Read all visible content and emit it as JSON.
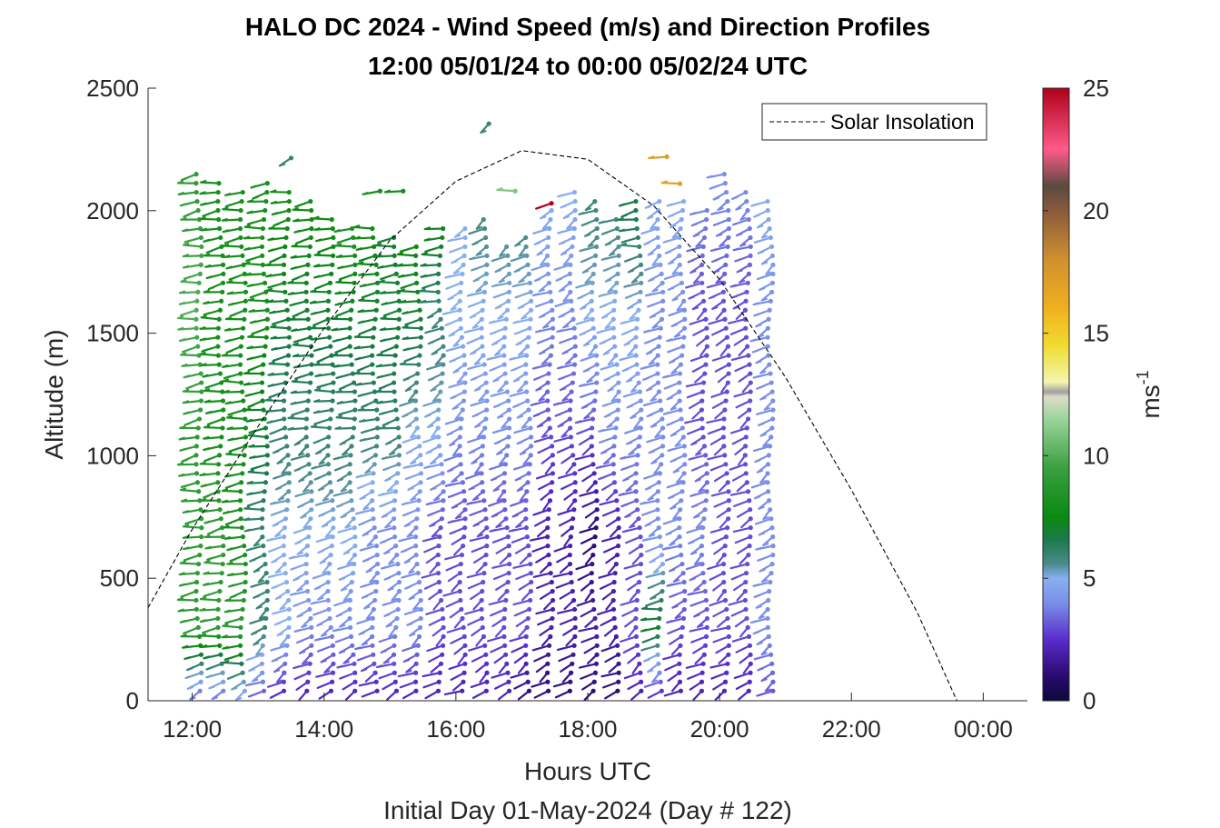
{
  "chart_data": {
    "type": "wind-barb-profile",
    "title": "HALO DC 2024 - Wind Speed (m/s) and Direction Profiles",
    "subtitle": "12:00 05/01/24 to 00:00 05/02/24  UTC",
    "xlabel": "Hours UTC",
    "ylabel": "Altitude (m)",
    "footer": "Initial Day 01-May-2024 (Day # 122)",
    "x_ticks": [
      "12:00",
      "14:00",
      "16:00",
      "18:00",
      "20:00",
      "22:00",
      "00:00"
    ],
    "y_ticks": [
      "0",
      "500",
      "1000",
      "1500",
      "2000",
      "2500"
    ],
    "xlim_hours": [
      11.33,
      24.67
    ],
    "ylim": [
      0,
      2500
    ],
    "legend": {
      "label": "Solar Insolation",
      "position": "top-right"
    },
    "colorbar": {
      "ticks": [
        "0",
        "5",
        "10",
        "15",
        "20",
        "25"
      ],
      "label_base": "ms",
      "label_exp": "-1",
      "range": [
        0,
        25
      ],
      "colors": [
        {
          "v": 0,
          "c": "#0a0a3a"
        },
        {
          "v": 1,
          "c": "#2a0a6e"
        },
        {
          "v": 2.5,
          "c": "#5a2ccc"
        },
        {
          "v": 4,
          "c": "#7a8fe8"
        },
        {
          "v": 5,
          "c": "#88b0f0"
        },
        {
          "v": 5.6,
          "c": "#4a8a8a"
        },
        {
          "v": 6.6,
          "c": "#1a7a4a"
        },
        {
          "v": 7.5,
          "c": "#0a8a10"
        },
        {
          "v": 9.5,
          "c": "#3aa040"
        },
        {
          "v": 11.5,
          "c": "#9cd49c"
        },
        {
          "v": 12.4,
          "c": "#dcdcc8"
        },
        {
          "v": 12.6,
          "c": "#a0a0a0"
        },
        {
          "v": 13,
          "c": "#f4f4b0"
        },
        {
          "v": 14.5,
          "c": "#f0dc30"
        },
        {
          "v": 16,
          "c": "#f0b020"
        },
        {
          "v": 18,
          "c": "#d09030"
        },
        {
          "v": 20,
          "c": "#8a5a3a"
        },
        {
          "v": 21,
          "c": "#5a4a40"
        },
        {
          "v": 22.5,
          "c": "#ff5a8a"
        },
        {
          "v": 25,
          "c": "#b0001a"
        }
      ]
    },
    "solar_insolation": {
      "hours": [
        11.33,
        12,
        13,
        14,
        15,
        16,
        17,
        18,
        19,
        20,
        21,
        22,
        23,
        23.6,
        24.67
      ],
      "altitude_equiv_m": [
        380,
        700,
        1120,
        1520,
        1880,
        2120,
        2245,
        2210,
        2020,
        1720,
        1320,
        860,
        360,
        0,
        0
      ]
    },
    "profiles": {
      "times_hours": [
        12.1,
        12.43,
        12.77,
        13.1,
        13.43,
        13.77,
        14.1,
        14.43,
        14.77,
        15.1,
        15.43,
        15.77,
        16.1,
        16.43,
        16.77,
        17.1,
        17.43,
        17.77,
        18.1,
        18.43,
        18.77,
        19.1,
        19.43,
        19.77,
        20.1,
        20.43,
        20.77
      ],
      "top_altitudes_m": [
        2180,
        2130,
        2090,
        2130,
        2100,
        2060,
        2000,
        1960,
        1960,
        1900,
        1870,
        1950,
        1960,
        2000,
        1880,
        1920,
        2010,
        2080,
        2060,
        2000,
        2070,
        2070,
        2060,
        2020,
        2180,
        2080,
        2040
      ],
      "speed_profiles_ms": [
        [
          3,
          9,
          9,
          9,
          10,
          9
        ],
        [
          3,
          9,
          9,
          8,
          8,
          8
        ],
        [
          4,
          9,
          8,
          8,
          8,
          8
        ],
        [
          3,
          6,
          6,
          7,
          8,
          8
        ],
        [
          2,
          5,
          5,
          6,
          7,
          8
        ],
        [
          2,
          4,
          5,
          6,
          7,
          8
        ],
        [
          2,
          4,
          5,
          6,
          7,
          8
        ],
        [
          2,
          4,
          5,
          6,
          7,
          9
        ],
        [
          2,
          4,
          4,
          6,
          7,
          8
        ],
        [
          2,
          4,
          4,
          6,
          7,
          7
        ],
        [
          2,
          4,
          4,
          5,
          7,
          8
        ],
        [
          2,
          3,
          3,
          5,
          6,
          8
        ],
        [
          2,
          3,
          3,
          4,
          5,
          5
        ],
        [
          2,
          3,
          3,
          4,
          5,
          6
        ],
        [
          2,
          3,
          3,
          4,
          5,
          6
        ],
        [
          1,
          3,
          3,
          4,
          5,
          6
        ],
        [
          1,
          2,
          2,
          3,
          4,
          5
        ],
        [
          1,
          2,
          2,
          3,
          4,
          5
        ],
        [
          1,
          2,
          1,
          3,
          5,
          6
        ],
        [
          1,
          2,
          2,
          4,
          5,
          6
        ],
        [
          2,
          3,
          3,
          4,
          5,
          7
        ],
        [
          2,
          7,
          4,
          4,
          4,
          5
        ],
        [
          2,
          3,
          4,
          4,
          4,
          5
        ],
        [
          2,
          3,
          4,
          3,
          3,
          4
        ],
        [
          2,
          3,
          3,
          3,
          3,
          4
        ],
        [
          2,
          3,
          3,
          3,
          3,
          4
        ],
        [
          3,
          4,
          4,
          4,
          4,
          5
        ]
      ],
      "profile_levels_m": [
        0,
        300,
        700,
        1100,
        1600,
        2100
      ],
      "isolated_barbs": [
        {
          "hour": 16.5,
          "alt": 2355,
          "speed": 6
        },
        {
          "hour": 13.5,
          "alt": 2215,
          "speed": 6
        },
        {
          "hour": 19.2,
          "alt": 2220,
          "speed": 17
        },
        {
          "hour": 19.4,
          "alt": 2110,
          "speed": 17
        },
        {
          "hour": 17.45,
          "alt": 2030,
          "speed": 25
        },
        {
          "hour": 14.85,
          "alt": 2080,
          "speed": 8
        },
        {
          "hour": 15.2,
          "alt": 2080,
          "speed": 8
        },
        {
          "hour": 16.9,
          "alt": 2080,
          "speed": 11
        }
      ]
    }
  }
}
